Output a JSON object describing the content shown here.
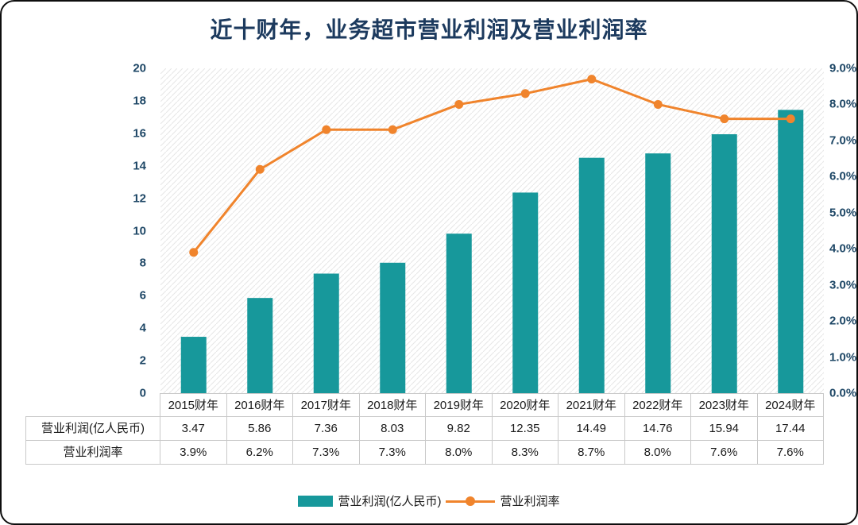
{
  "chart_data": {
    "type": "combo-bar-line",
    "title": "近十财年，业务超市营业利润及营业利润率",
    "categories": [
      "2015财年",
      "2016财年",
      "2017财年",
      "2018财年",
      "2019财年",
      "2020财年",
      "2021财年",
      "2022财年",
      "2023财年",
      "2024财年"
    ],
    "series": [
      {
        "name": "营业利润(亿人民币)",
        "type": "bar",
        "color": "#17989b",
        "axis": "left",
        "values": [
          3.47,
          5.86,
          7.36,
          8.03,
          9.82,
          12.35,
          14.49,
          14.76,
          15.94,
          17.44
        ],
        "labels": [
          "3.47",
          "5.86",
          "7.36",
          "8.03",
          "9.82",
          "12.35",
          "14.49",
          "14.76",
          "15.94",
          "17.44"
        ]
      },
      {
        "name": "营业利润率",
        "type": "line",
        "color": "#f0842c",
        "axis": "right",
        "values": [
          3.9,
          6.2,
          7.3,
          7.3,
          8.0,
          8.3,
          8.7,
          8.0,
          7.6,
          7.6
        ],
        "labels": [
          "3.9%",
          "6.2%",
          "7.3%",
          "7.3%",
          "8.0%",
          "8.3%",
          "8.7%",
          "8.0%",
          "7.6%",
          "7.6%"
        ]
      }
    ],
    "left_axis": {
      "min": 0,
      "max": 20,
      "step": 2
    },
    "right_axis": {
      "min": 0,
      "max": 9,
      "step": 1,
      "suffix": "%",
      "decimals": 1
    },
    "legend_position": "bottom",
    "grid": false,
    "plot_background": "diagonal-hatch",
    "hatch_color": "#e7e7e7",
    "table_border_color": "#c9c9c9",
    "title_color": "#1c3a5e",
    "tick_color": "#1e4766"
  }
}
